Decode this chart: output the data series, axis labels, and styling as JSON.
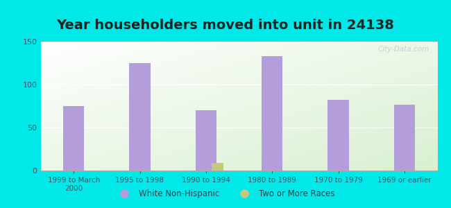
{
  "title": "Year householders moved into unit in 24138",
  "categories": [
    "1999 to March\n2000",
    "1995 to 1998",
    "1990 to 1994",
    "1980 to 1989",
    "1970 to 1979",
    "1969 or earlier"
  ],
  "white_non_hispanic": [
    75,
    125,
    70,
    133,
    82,
    77
  ],
  "two_or_more_races": [
    0,
    0,
    9,
    0,
    0,
    0
  ],
  "bar_color_white": "#b39ddb",
  "bar_color_two": "#c8c87a",
  "ylim": [
    0,
    150
  ],
  "yticks": [
    0,
    50,
    100,
    150
  ],
  "outer_bg": "#00e8e8",
  "plot_bg_top_left": "#ffffff",
  "plot_bg_bottom_right": "#d8f0d0",
  "legend_labels": [
    "White Non-Hispanic",
    "Two or More Races"
  ],
  "bar_width": 0.32,
  "title_fontsize": 14,
  "watermark": "City-Data.com",
  "tick_color": "#445566",
  "label_color": "#334455"
}
